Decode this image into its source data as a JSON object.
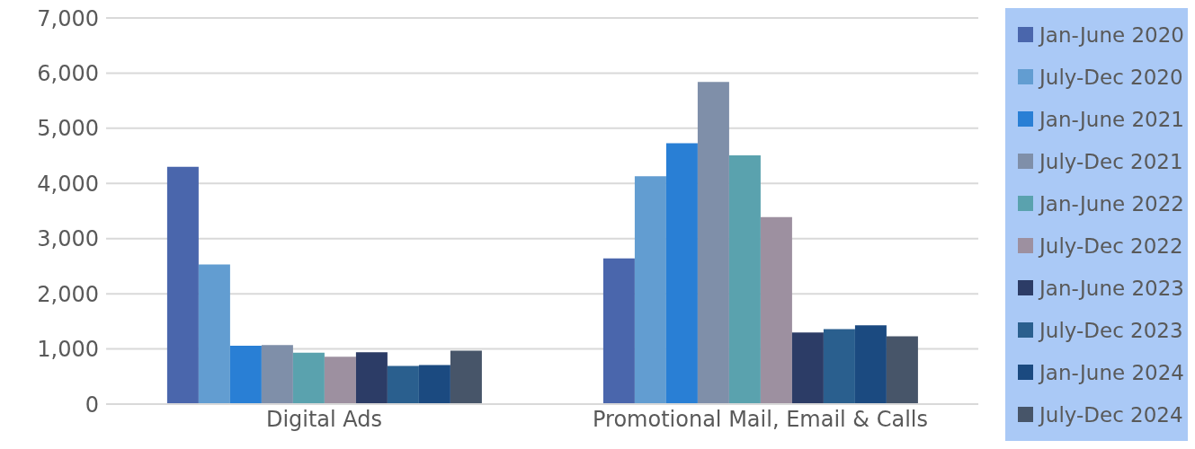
{
  "chart_data": {
    "type": "bar",
    "categories": [
      "Digital Ads",
      "Promotional Mail, Email & Calls"
    ],
    "series": [
      {
        "name": "Jan-June 2020",
        "color": "#4a66ac",
        "values": [
          4300,
          2640
        ]
      },
      {
        "name": "July-Dec 2020",
        "color": "#629dd1",
        "values": [
          2530,
          4130
        ]
      },
      {
        "name": "Jan-June 2021",
        "color": "#297fd5",
        "values": [
          1060,
          4730
        ]
      },
      {
        "name": "July-Dec 2021",
        "color": "#7f8fa9",
        "values": [
          1070,
          5840
        ]
      },
      {
        "name": "Jan-June 2022",
        "color": "#5aa2ae",
        "values": [
          930,
          4510
        ]
      },
      {
        "name": "July-Dec 2022",
        "color": "#9d90a0",
        "values": [
          860,
          3390
        ]
      },
      {
        "name": "Jan-June 2023",
        "color": "#2c3c66",
        "values": [
          940,
          1300
        ]
      },
      {
        "name": "July-Dec 2023",
        "color": "#2a5f8e",
        "values": [
          690,
          1360
        ]
      },
      {
        "name": "Jan-June 2024",
        "color": "#1b4a80",
        "values": [
          710,
          1430
        ]
      },
      {
        "name": "July-Dec 2024",
        "color": "#475569",
        "values": [
          970,
          1230
        ]
      }
    ],
    "ylim": [
      0,
      7000
    ],
    "yticks": [
      0,
      {
        "value": 1000,
        "label": "1,000"
      },
      {
        "value": 2000,
        "label": "2,000"
      },
      {
        "value": 3000,
        "label": "3,000"
      },
      {
        "value": 4000,
        "label": "4,000"
      },
      {
        "value": 5000,
        "label": "5,000"
      },
      {
        "value": 6000,
        "label": "6,000"
      },
      {
        "value": 7000,
        "label": "7,000"
      }
    ],
    "grid": "y",
    "legend": "right"
  }
}
